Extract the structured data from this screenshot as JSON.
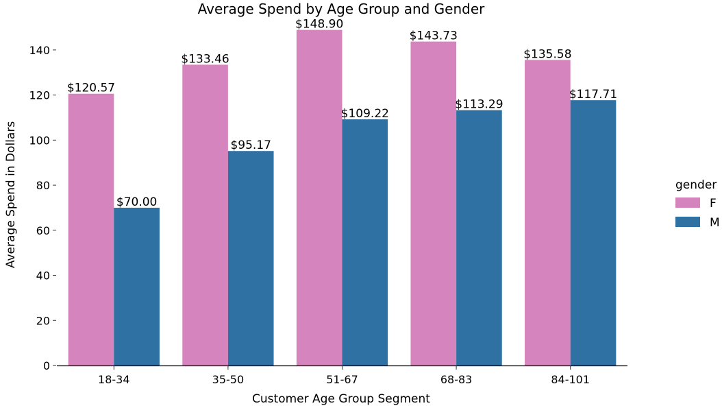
{
  "chart_data": {
    "type": "bar",
    "title": "Average Spend by Age Group and Gender",
    "xlabel": "Customer Age Group Segment",
    "ylabel": "Average Spend in Dollars",
    "categories": [
      "18-34",
      "35-50",
      "51-67",
      "68-83",
      "84-101"
    ],
    "series": [
      {
        "name": "F",
        "color": "#D684BD",
        "values": [
          120.57,
          133.46,
          148.9,
          143.73,
          135.58
        ],
        "labels": [
          "$120.57",
          "$133.46",
          "$148.90",
          "$143.73",
          "$135.58"
        ]
      },
      {
        "name": "M",
        "color": "#2F71A2",
        "values": [
          70.0,
          95.17,
          109.22,
          113.29,
          117.71
        ],
        "labels": [
          "$70.00",
          "$95.17",
          "$109.22",
          "$113.29",
          "$117.71"
        ]
      }
    ],
    "ylim": [
      0,
      150
    ],
    "yticks": [
      0,
      20,
      40,
      60,
      80,
      100,
      120,
      140
    ],
    "legend": {
      "title": "gender",
      "placement": "right"
    },
    "grid": false
  }
}
